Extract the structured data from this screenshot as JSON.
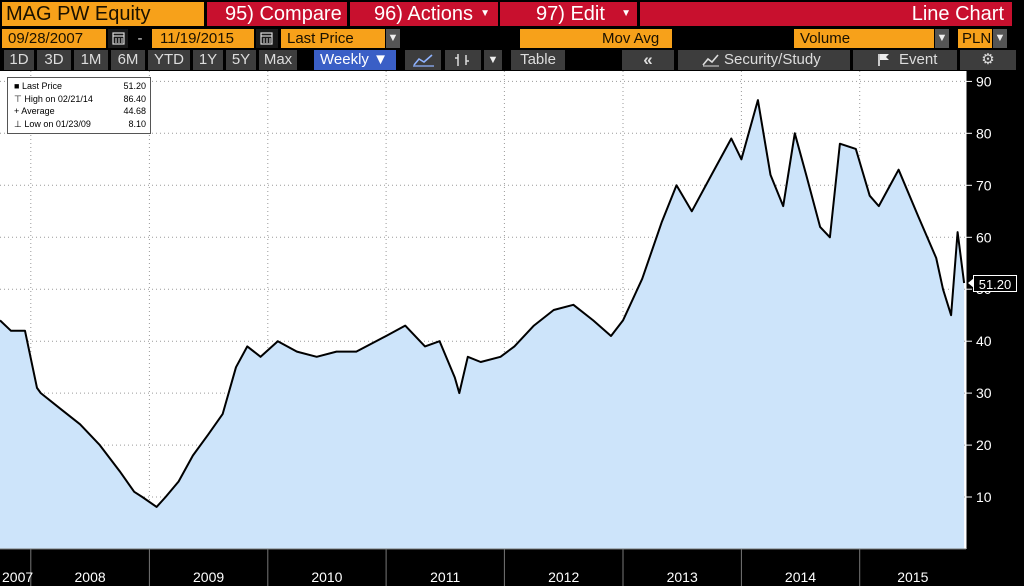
{
  "header": {
    "security": "MAG PW Equity",
    "compare": "95) Compare",
    "actions": "96) Actions",
    "edit": "97) Edit",
    "chart_type": "Line Chart",
    "dropdown_glyph": "▼"
  },
  "toolbar": {
    "start_date": "09/28/2007",
    "date_sep": "-",
    "end_date": "11/19/2015",
    "field": "Last Price",
    "mov_avg": "Mov Avg",
    "volume": "Volume",
    "currency": "PLN",
    "calendar_icon": "calendar-icon"
  },
  "ranges": {
    "items": [
      "1D",
      "3D",
      "1M",
      "6M",
      "YTD",
      "1Y",
      "5Y",
      "Max"
    ],
    "frequency": "Weekly ▼",
    "table": "Table",
    "back": "«",
    "security_study": "Security/Study",
    "event": "Event",
    "gear": "⚙"
  },
  "legend": {
    "last_label": "Last Price",
    "last_value": "51.20",
    "high_label": "High on 02/21/14",
    "high_value": "86.40",
    "avg_label": "Average",
    "avg_value": "44.68",
    "low_label": "Low on 01/23/09",
    "low_value": "8.10"
  },
  "last_box": "51.20",
  "colors": {
    "line": "#000000",
    "fill": "#cde4fa",
    "grid": "#9a9a9a",
    "header_orange": "#f7a11a",
    "header_red": "#c8102e"
  },
  "chart_data": {
    "type": "area",
    "series": [
      {
        "name": "Last Price",
        "x": [
          "2007-09-28",
          "2007-11-01",
          "2007-12-14",
          "2008-01-20",
          "2008-02-01",
          "2008-04-01",
          "2008-06-01",
          "2008-08-01",
          "2008-10-01",
          "2008-11-15",
          "2008-12-10",
          "2009-01-23",
          "2009-02-20",
          "2009-04-01",
          "2009-05-15",
          "2009-07-01",
          "2009-08-15",
          "2009-09-25",
          "2009-10-30",
          "2009-12-10",
          "2010-02-01",
          "2010-04-01",
          "2010-06-01",
          "2010-08-01",
          "2010-10-01",
          "2011-01-01",
          "2011-03-01",
          "2011-05-01",
          "2011-06-15",
          "2011-08-01",
          "2011-08-15",
          "2011-09-10",
          "2011-10-20",
          "2011-12-20",
          "2012-02-01",
          "2012-04-01",
          "2012-06-01",
          "2012-08-01",
          "2012-10-01",
          "2012-11-25",
          "2013-01-01",
          "2013-03-01",
          "2013-05-01",
          "2013-06-15",
          "2013-08-01",
          "2013-10-01",
          "2013-12-01",
          "2014-01-01",
          "2014-02-21",
          "2014-04-01",
          "2014-05-10",
          "2014-06-15",
          "2014-07-20",
          "2014-09-01",
          "2014-10-01",
          "2014-11-01",
          "2014-12-20",
          "2015-02-01",
          "2015-03-01",
          "2015-05-01",
          "2015-07-01",
          "2015-08-25",
          "2015-09-15",
          "2015-10-10",
          "2015-10-30",
          "2015-11-19"
        ],
        "values": [
          44,
          42,
          42,
          31,
          30,
          27,
          24,
          20,
          15,
          11,
          10,
          8.1,
          10,
          13,
          18,
          22,
          26,
          35,
          39,
          37,
          40,
          38,
          37,
          38,
          38,
          41,
          43,
          39,
          40,
          33,
          30,
          37,
          36,
          37,
          39,
          43,
          46,
          47,
          44,
          41,
          44,
          52,
          63,
          70,
          65,
          72,
          79,
          75,
          86.4,
          72,
          66,
          80,
          72,
          62,
          60,
          78,
          77,
          68,
          66,
          73,
          64,
          56,
          50,
          45,
          61,
          51.2
        ]
      }
    ],
    "ylim": [
      0,
      92
    ],
    "yticks": [
      10,
      20,
      30,
      40,
      50,
      60,
      70,
      80,
      90
    ],
    "xlim": [
      "2007-09-28",
      "2015-11-25"
    ],
    "xlabels": [
      "2007",
      "2008",
      "2009",
      "2010",
      "2011",
      "2012",
      "2013",
      "2014",
      "2015"
    ],
    "xlabel": "",
    "ylabel": "",
    "grid": true,
    "legend_position": "top-left"
  }
}
